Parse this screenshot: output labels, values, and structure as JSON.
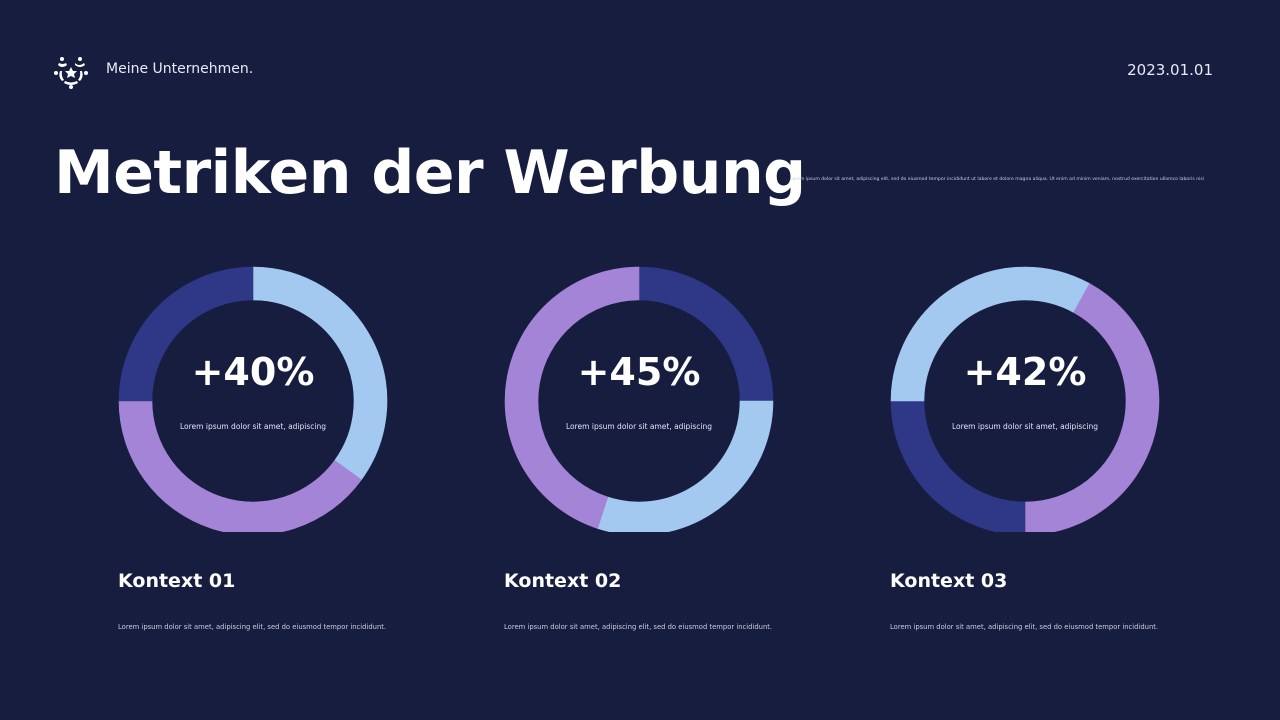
{
  "header": {
    "brand": "Meine Unternehmen.",
    "date": "2023.01.01"
  },
  "title": "Metriken der Werbung",
  "intro": "Lorem ipsum dolor sit amet, adipiscing elit, sed do eiusmod tempor incididunt ut labore et dolore magna aliqua. Ut enim ad minim veniam, nostrud exercitation ullamco laboris nisi",
  "colors": {
    "background": "#161d3f",
    "light_blue": "#a3c9f1",
    "purple": "#a384d6",
    "dark_blue": "#2e3886"
  },
  "chart_data": [
    {
      "type": "pie",
      "variant": "donut",
      "value_label": "+40%",
      "caption": "Lorem ipsum dolor sit amet, adipiscing",
      "segments": [
        {
          "color": "light_blue",
          "value": 35
        },
        {
          "color": "purple",
          "value": 40
        },
        {
          "color": "dark_blue",
          "value": 25
        }
      ]
    },
    {
      "type": "pie",
      "variant": "donut",
      "value_label": "+45%",
      "caption": "Lorem ipsum dolor sit amet, adipiscing",
      "segments": [
        {
          "color": "dark_blue",
          "value": 25
        },
        {
          "color": "light_blue",
          "value": 30
        },
        {
          "color": "purple",
          "value": 45
        }
      ]
    },
    {
      "type": "pie",
      "variant": "donut",
      "value_label": "+42%",
      "caption": "Lorem ipsum dolor sit amet, adipiscing",
      "segments": [
        {
          "color": "light_blue",
          "value": 8
        },
        {
          "color": "purple",
          "value": 42
        },
        {
          "color": "dark_blue",
          "value": 25
        },
        {
          "color": "light_blue",
          "value": 25
        }
      ]
    }
  ],
  "contexts": [
    {
      "title": "Kontext 01",
      "text": "Lorem ipsum dolor sit amet, adipiscing elit, sed do eiusmod tempor incididunt."
    },
    {
      "title": "Kontext 02",
      "text": "Lorem ipsum dolor sit amet, adipiscing elit, sed do eiusmod tempor incididunt."
    },
    {
      "title": "Kontext 03",
      "text": "Lorem ipsum dolor sit amet, adipiscing elit, sed do eiusmod tempor incididunt."
    }
  ]
}
